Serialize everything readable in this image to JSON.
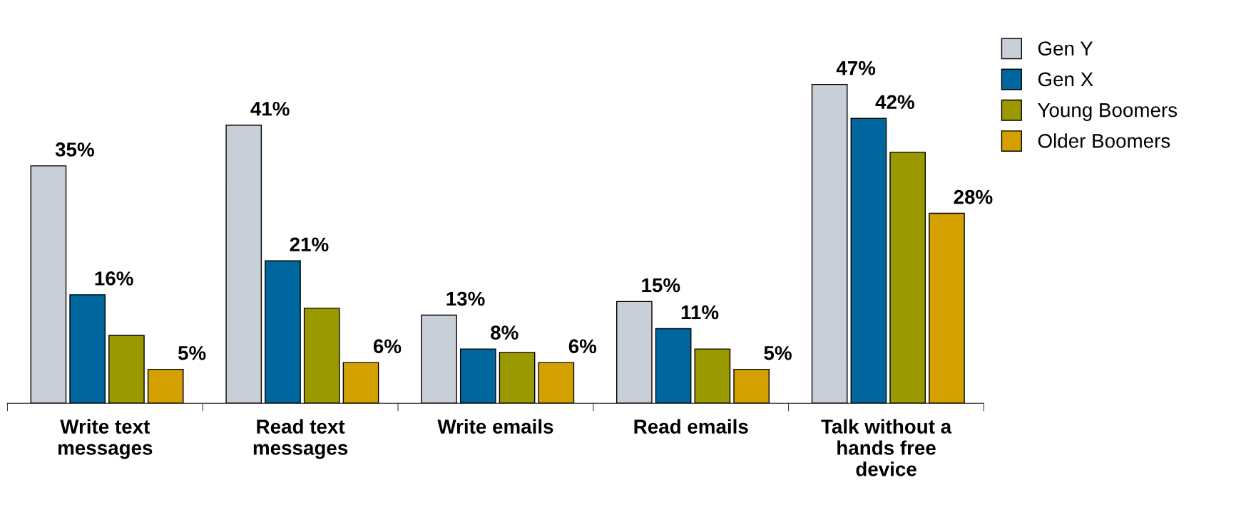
{
  "chart_data": {
    "type": "bar",
    "categories": [
      "Write text\nmessages",
      "Read text\nmessages",
      "Write emails",
      "Read emails",
      "Talk without a\nhands free\ndevice"
    ],
    "series": [
      {
        "name": "Gen Y",
        "color": "#c8cfd8",
        "values": [
          35,
          41,
          13,
          15,
          47
        ],
        "value_labels": [
          "35%",
          "41%",
          "13%",
          "15%",
          "47%"
        ]
      },
      {
        "name": "Gen X",
        "color": "#00679e",
        "values": [
          16,
          21,
          8,
          11,
          42
        ],
        "value_labels": [
          "16%",
          "21%",
          "8%",
          "11%",
          "42%"
        ]
      },
      {
        "name": "Young Boomers",
        "color": "#9a9a00",
        "values": [
          10,
          14,
          7.5,
          8,
          37
        ],
        "value_labels": [
          null,
          null,
          null,
          null,
          null
        ]
      },
      {
        "name": "Older Boomers",
        "color": "#d4a000",
        "values": [
          5,
          6,
          6,
          5,
          28
        ],
        "value_labels": [
          "5%",
          "6%",
          "6%",
          "5%",
          "28%"
        ]
      }
    ],
    "grid": false,
    "legend": "top right"
  }
}
